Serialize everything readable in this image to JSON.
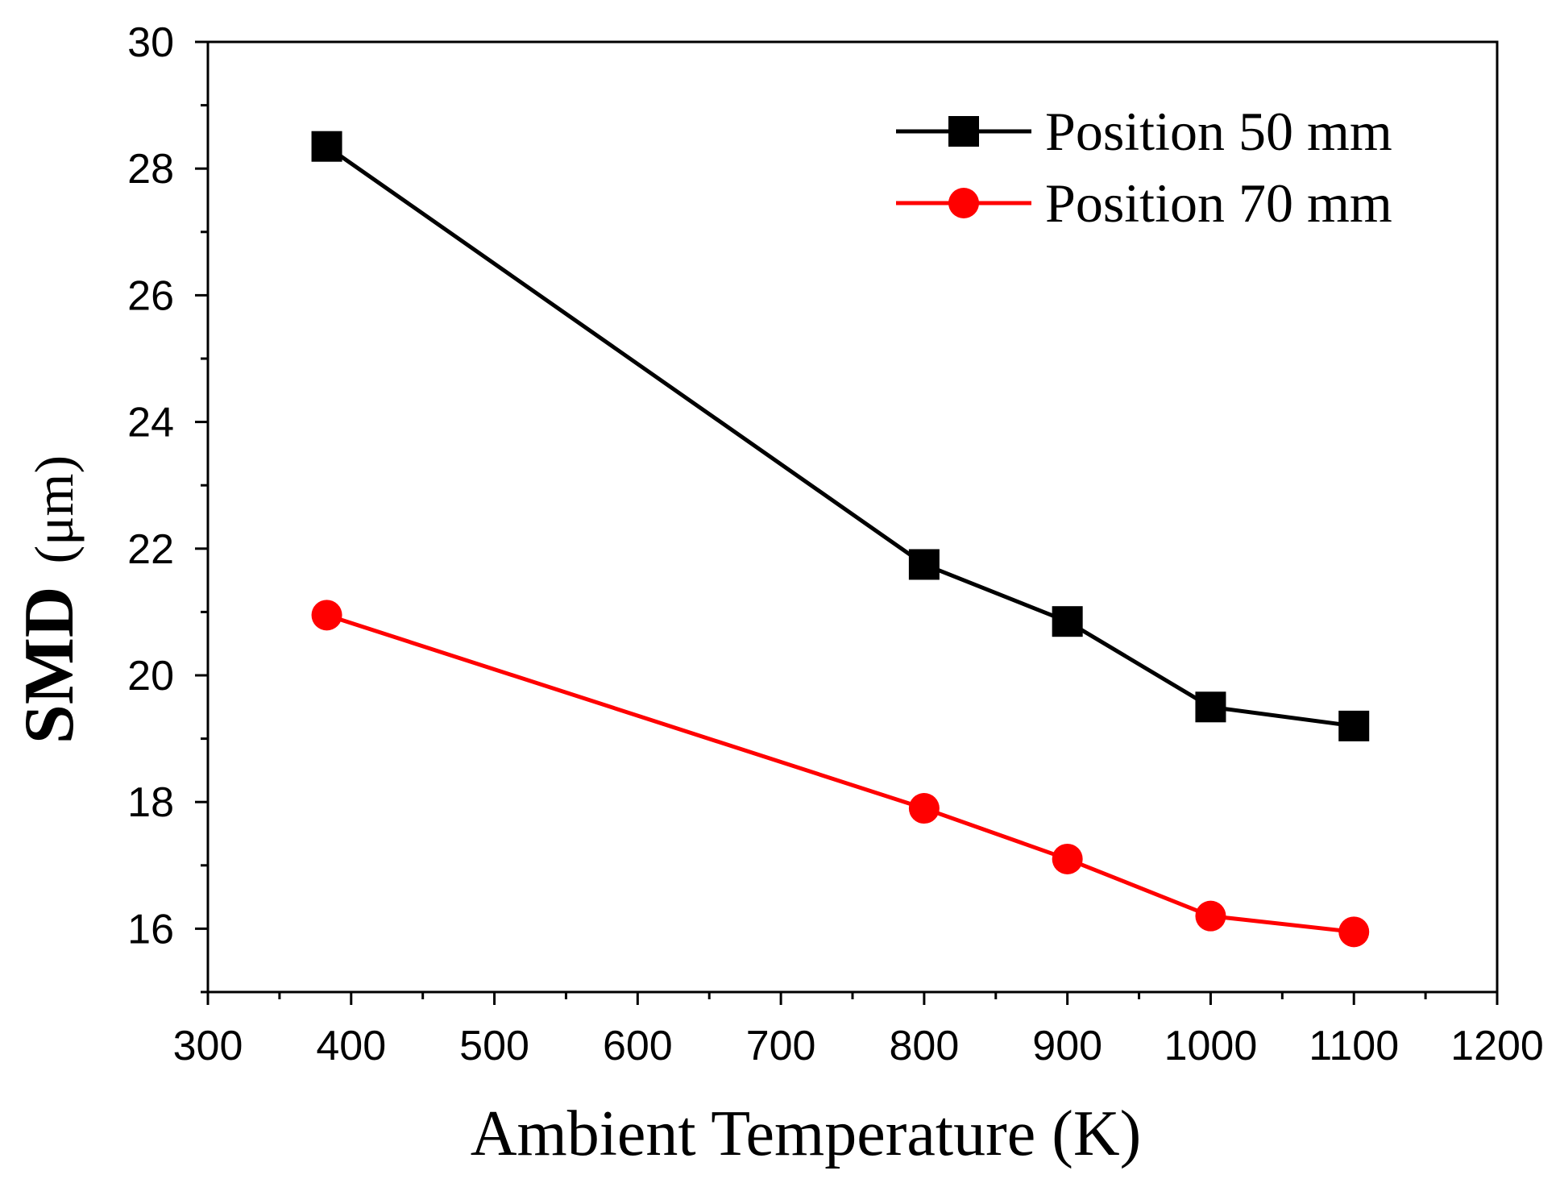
{
  "chart_data": {
    "type": "line",
    "xlabel": "Ambient Temperature (K)",
    "ylabel_main": "SMD",
    "ylabel_unit": "(μm)",
    "xlim": [
      300,
      1200
    ],
    "ylim": [
      15,
      30
    ],
    "xticks": [
      300,
      400,
      500,
      600,
      700,
      800,
      900,
      1000,
      1100,
      1200
    ],
    "yticks": [
      16,
      18,
      20,
      22,
      24,
      26,
      28,
      30
    ],
    "grid": false,
    "legend_position": "top-right",
    "series": [
      {
        "name": "Position 50 mm",
        "color": "#000000",
        "marker": "square",
        "x": [
          383,
          800,
          900,
          1000,
          1100
        ],
        "y": [
          28.35,
          21.75,
          20.85,
          19.5,
          19.2
        ]
      },
      {
        "name": "Position 70 mm",
        "color": "#ff0000",
        "marker": "circle",
        "x": [
          383,
          800,
          900,
          1000,
          1100
        ],
        "y": [
          20.95,
          17.9,
          17.1,
          16.2,
          15.95
        ]
      }
    ]
  }
}
